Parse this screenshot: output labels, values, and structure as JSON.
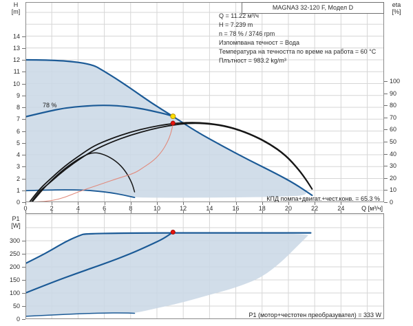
{
  "title_box": "MAGNA3 32-120 F, Модел D",
  "info_lines": [
    "Q = 11.22 м³/ч",
    "H = 7.239 m",
    "n = 78 % / 3746 rpm",
    "Изпомпвана течност = Вода",
    "Температура на течността по време на работа = 60 °C",
    "Плътност = 983.2 kg/m³"
  ],
  "axes": {
    "top_y_name": "H",
    "top_y_unit": "[m]",
    "right_y_name": "eta",
    "right_y_unit": "[%]",
    "bottom_y_name": "P1",
    "bottom_y_unit": "[W]",
    "x_unit": "Q [м³/ч]"
  },
  "annotations": {
    "speed_label": "78 %",
    "eff_label": "КПД помпа+двигат.+чест.конв. = 65.3 %",
    "power_label": "P1 (мотор+честотен преобразувател) = 333 W"
  },
  "colors": {
    "curve_blue": "#1b5a96",
    "envelope_fill": "#cbd8e6",
    "eta_black": "#161616",
    "control_red": "#e18a7c",
    "duty_yellow": "#ffdf00",
    "duty_red": "#e8140e",
    "grid": "#d6d6d6",
    "frame": "#8a8a8a"
  },
  "chart_data": [
    {
      "id": "hq",
      "type": "line",
      "title": "Pump head / efficiency vs flow",
      "xlabel": "Q [м³/ч]",
      "ylabel": "H [m]",
      "y2label": "eta [%]",
      "xlim": [
        0,
        27.28
      ],
      "ylim": [
        0,
        16.87
      ],
      "y2lim": [
        0,
        165.3
      ],
      "xgrid_step": 2,
      "ygrid_step": 1,
      "xticks": [
        0,
        2,
        4,
        6,
        8,
        10,
        12,
        14,
        16,
        18,
        20,
        22,
        24
      ],
      "yticks": [
        0,
        1,
        2,
        3,
        4,
        5,
        6,
        7,
        8,
        9,
        10,
        11,
        12,
        13,
        14
      ],
      "y2ticks": [
        0,
        10,
        20,
        30,
        40,
        50,
        60,
        70,
        80,
        90,
        100
      ],
      "duty_point": {
        "Q": 11.22,
        "H": 7.239,
        "n_percent": 78,
        "rpm": 3746,
        "eta_percent": 65.3
      },
      "fills": [
        {
          "name": "operating-envelope",
          "axis": "y",
          "opacity": 0.88,
          "points": [
            [
              0,
              12
            ],
            [
              4.5,
              12
            ],
            [
              6.5,
              10.7
            ],
            [
              8,
              9.6
            ],
            [
              9.6,
              8.35
            ],
            [
              11.22,
              7.24
            ],
            [
              13,
              5.95
            ],
            [
              15,
              4.72
            ],
            [
              17,
              3.55
            ],
            [
              19,
              2.45
            ],
            [
              20.5,
              1.55
            ],
            [
              21.8,
              0.58
            ],
            [
              19,
              0.45
            ],
            [
              16,
              0.4
            ],
            [
              13,
              0.38
            ],
            [
              10,
              0.38
            ],
            [
              8.3,
              0.4
            ],
            [
              7.4,
              0.62
            ],
            [
              6.5,
              0.8
            ],
            [
              5.5,
              0.93
            ],
            [
              4.5,
              1.02
            ],
            [
              3,
              1.05
            ],
            [
              1.5,
              1.02
            ],
            [
              0,
              0.97
            ]
          ]
        }
      ],
      "series": [
        {
          "name": "max-speed-curve",
          "axis": "y",
          "color": "curve_blue",
          "width": 2.2,
          "points": [
            [
              0,
              12
            ],
            [
              4.5,
              12
            ],
            [
              6.5,
              10.7
            ],
            [
              8,
              9.6
            ],
            [
              9.6,
              8.35
            ],
            [
              11.22,
              7.24
            ],
            [
              13,
              5.95
            ],
            [
              15,
              4.72
            ],
            [
              17,
              3.55
            ],
            [
              19,
              2.45
            ],
            [
              20.5,
              1.55
            ],
            [
              21.8,
              0.58
            ]
          ]
        },
        {
          "name": "speed-78-curve",
          "axis": "y",
          "color": "curve_blue",
          "width": 2.2,
          "points": [
            [
              0,
              7.2
            ],
            [
              1.5,
              7.6
            ],
            [
              3,
              7.95
            ],
            [
              4.5,
              8.1
            ],
            [
              5.8,
              8.18
            ],
            [
              7,
              8.13
            ],
            [
              8,
              8.02
            ],
            [
              9,
              7.85
            ],
            [
              10,
              7.6
            ],
            [
              10.7,
              7.42
            ],
            [
              11.22,
              7.24
            ]
          ]
        },
        {
          "name": "min-speed-curve",
          "axis": "y",
          "color": "curve_blue",
          "width": 1.8,
          "points": [
            [
              0,
              0.97
            ],
            [
              1.5,
              1.02
            ],
            [
              3,
              1.05
            ],
            [
              4.5,
              1.02
            ],
            [
              5.5,
              0.93
            ],
            [
              6.5,
              0.8
            ],
            [
              7.4,
              0.62
            ],
            [
              8.3,
              0.4
            ]
          ]
        },
        {
          "name": "eta-pump-curve",
          "axis": "y2",
          "color": "eta_black",
          "width": 1.8,
          "points": [
            [
              0.3,
              0
            ],
            [
              1,
              10
            ],
            [
              1.73,
              17.6
            ],
            [
              3,
              30
            ],
            [
              4.3,
              40
            ],
            [
              5.2,
              46.5
            ],
            [
              6.5,
              52.5
            ],
            [
              8,
              58
            ],
            [
              9.5,
              62
            ],
            [
              11,
              64.8
            ],
            [
              12.5,
              66
            ],
            [
              14,
              65.3
            ],
            [
              15.5,
              62.5
            ],
            [
              17,
              57
            ],
            [
              18.5,
              49
            ],
            [
              19.8,
              39
            ],
            [
              20.8,
              27
            ],
            [
              21.4,
              18
            ],
            [
              21.8,
              11
            ]
          ]
        },
        {
          "name": "eta-total-curve",
          "axis": "y2",
          "color": "eta_black",
          "width": 1.8,
          "points": [
            [
              0.45,
              0
            ],
            [
              1,
              8.5
            ],
            [
              1.73,
              15
            ],
            [
              3,
              27
            ],
            [
              4.3,
              37
            ],
            [
              5.2,
              43
            ],
            [
              6.5,
              49.5
            ],
            [
              8,
              55.5
            ],
            [
              9.5,
              60
            ],
            [
              11,
              63.5
            ],
            [
              12.5,
              65.3
            ],
            [
              14,
              64.8
            ],
            [
              15.5,
              62
            ],
            [
              17,
              56.5
            ],
            [
              18.5,
              48.5
            ],
            [
              19.8,
              38.5
            ],
            [
              20.8,
              26.5
            ],
            [
              21.4,
              17.5
            ],
            [
              21.8,
              10.8
            ]
          ]
        },
        {
          "name": "eta-min-speed-curve",
          "axis": "y2",
          "color": "eta_black",
          "width": 1.5,
          "points": [
            [
              0.5,
              0
            ],
            [
              1.5,
              13
            ],
            [
              2.5,
              23.5
            ],
            [
              3.5,
              32
            ],
            [
              4.45,
              38.5
            ],
            [
              5.2,
              41.3
            ],
            [
              6,
              39.5
            ],
            [
              6.9,
              34
            ],
            [
              7.6,
              26
            ],
            [
              8.1,
              16
            ],
            [
              8.3,
              8.5
            ]
          ]
        },
        {
          "name": "control-curve",
          "axis": "y",
          "color": "control_red",
          "width": 1.1,
          "points": [
            [
              0,
              0
            ],
            [
              1,
              0.03
            ],
            [
              2,
              0.12
            ],
            [
              3,
              0.4
            ],
            [
              4,
              0.87
            ],
            [
              5,
              1.25
            ],
            [
              6,
              1.62
            ],
            [
              7,
              2.0
            ],
            [
              8.3,
              2.44
            ],
            [
              9,
              2.95
            ],
            [
              9.8,
              3.55
            ],
            [
              10.4,
              4.3
            ],
            [
              10.8,
              5.06
            ],
            [
              11.05,
              5.75
            ],
            [
              11.22,
              6.55
            ]
          ]
        }
      ],
      "markers": [
        {
          "name": "duty-point",
          "x": 11.22,
          "y": 7.24,
          "axis": "y",
          "fill": "duty_yellow",
          "stroke": "#bb9400",
          "r": 3.5
        },
        {
          "name": "efficiency-point",
          "x": 11.22,
          "y": 65.3,
          "axis": "y2",
          "fill": "duty_red",
          "stroke": "#9e0d09",
          "r": 3
        }
      ]
    },
    {
      "id": "p1",
      "type": "line",
      "title": "Power input vs flow",
      "xlabel": "Q [м³/ч]",
      "ylabel": "P1 [W]",
      "xlim": [
        0,
        27.28
      ],
      "ylim": [
        0,
        405.3
      ],
      "xgrid_step": 2,
      "ygrid_step": 50,
      "xticks": [
        0,
        2,
        4,
        6,
        8,
        10,
        12,
        14,
        16,
        18,
        20,
        22,
        24
      ],
      "yticks": [
        0,
        50,
        100,
        150,
        200,
        250,
        300
      ],
      "duty_point": {
        "Q": 11.22,
        "P1_W": 333
      },
      "fills": [
        {
          "name": "power-envelope",
          "axis": "y",
          "opacity": 0.88,
          "points": [
            [
              0,
              213
            ],
            [
              1,
              238
            ],
            [
              2,
              265
            ],
            [
              3,
              295
            ],
            [
              4,
              318
            ],
            [
              4.7,
              330
            ],
            [
              21.7,
              330
            ],
            [
              21.3,
              310
            ],
            [
              20.5,
              270
            ],
            [
              19.5,
              220
            ],
            [
              18,
              160
            ],
            [
              16,
              120
            ],
            [
              14,
              93
            ],
            [
              12,
              64
            ],
            [
              10,
              42
            ],
            [
              8.3,
              22.5
            ],
            [
              7.3,
              24
            ],
            [
              6,
              23.5
            ],
            [
              4,
              20.5
            ],
            [
              2,
              16
            ],
            [
              0,
              11
            ]
          ]
        }
      ],
      "series": [
        {
          "name": "max-power-curve",
          "axis": "y",
          "color": "curve_blue",
          "width": 2.2,
          "points": [
            [
              0,
              213
            ],
            [
              1,
              238
            ],
            [
              2,
              265
            ],
            [
              3,
              295
            ],
            [
              4,
              318
            ],
            [
              4.7,
              330
            ],
            [
              21.7,
              330
            ]
          ]
        },
        {
          "name": "power-78-curve",
          "axis": "y",
          "color": "curve_blue",
          "width": 2.2,
          "points": [
            [
              0,
              100
            ],
            [
              2,
              140
            ],
            [
              4,
              177
            ],
            [
              6,
              212
            ],
            [
              8,
              250
            ],
            [
              9.5,
              284
            ],
            [
              10.5,
              308
            ],
            [
              11.22,
              333
            ]
          ]
        },
        {
          "name": "min-power-curve",
          "axis": "y",
          "color": "curve_blue",
          "width": 1.5,
          "points": [
            [
              0,
              11
            ],
            [
              2,
              16
            ],
            [
              4,
              20.5
            ],
            [
              6,
              23.5
            ],
            [
              7.3,
              24
            ],
            [
              8.3,
              22.5
            ]
          ]
        }
      ],
      "markers": [
        {
          "name": "duty-power-point",
          "x": 11.22,
          "y": 333,
          "axis": "y",
          "fill": "duty_red",
          "stroke": "#9e0d09",
          "r": 3
        }
      ]
    }
  ]
}
